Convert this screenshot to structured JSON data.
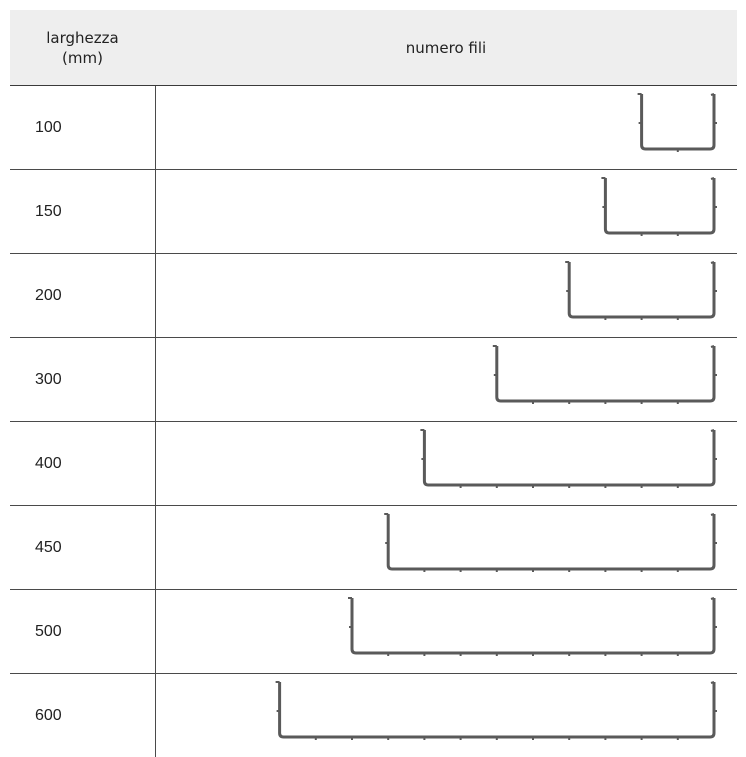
{
  "header": {
    "width_label_line1": "larghezza",
    "width_label_line2": "(mm)",
    "wires_label": "numero fili"
  },
  "rows": [
    {
      "width": "100",
      "wires": 3
    },
    {
      "width": "150",
      "wires": 4
    },
    {
      "width": "200",
      "wires": 5
    },
    {
      "width": "300",
      "wires": 7
    },
    {
      "width": "400",
      "wires": 9
    },
    {
      "width": "450",
      "wires": 10
    },
    {
      "width": "500",
      "wires": 11
    },
    {
      "width": "600",
      "wires": 13
    }
  ],
  "colors": {
    "tray_stroke": "#5a5a5a",
    "header_bg": "#eeeeee"
  }
}
